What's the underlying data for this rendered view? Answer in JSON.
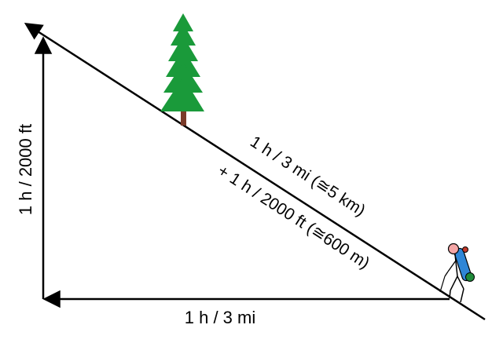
{
  "diagram": {
    "vertical_label": "1 h / 2000 ft",
    "horizontal_label": "1 h / 3 mi",
    "slope_label_line1": "1 h / 3 mi (≅5 km)",
    "slope_label_line2": "+ 1 h / 2000 ft (≅600 m)"
  },
  "colors": {
    "line": "#000000",
    "tree_green": "#1a9a3a",
    "tree_trunk": "#7a3b2a",
    "hiker_head": "#f4a6a6",
    "backpack": "#2f86d6",
    "bedroll": "#1f8a3a"
  },
  "icons": {
    "tree": "pine-tree-icon",
    "hiker": "hiker-icon"
  }
}
